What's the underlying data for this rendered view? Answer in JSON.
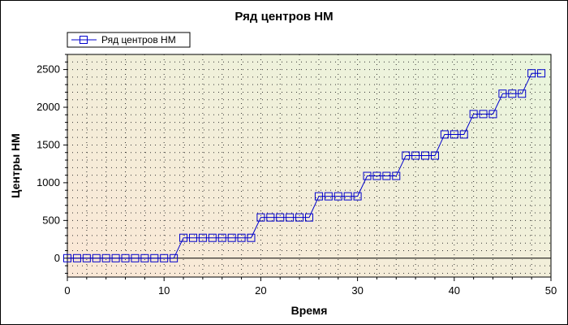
{
  "chart_data": {
    "type": "line",
    "title": "Ряд центров НМ",
    "xlabel": "Время",
    "ylabel": "Центры НМ",
    "xlim": [
      0,
      50
    ],
    "ylim": [
      -250,
      2700
    ],
    "xticks": [
      0,
      10,
      20,
      30,
      40,
      50
    ],
    "yticks": [
      0,
      500,
      1000,
      1500,
      2000,
      2500
    ],
    "grid": true,
    "legend_position": "top-left",
    "colors": {
      "series": "#0000cc",
      "zero_line": "#000000",
      "grid_dots": "#333333",
      "bg_left": "#fbe7d6",
      "bg_right": "#e9f6dd"
    },
    "series": [
      {
        "name": "Ряд центров НМ",
        "marker": "square",
        "x": [
          0,
          1,
          2,
          3,
          4,
          5,
          6,
          7,
          8,
          9,
          10,
          11,
          12,
          13,
          14,
          15,
          16,
          17,
          18,
          19,
          20,
          21,
          22,
          23,
          24,
          25,
          26,
          27,
          28,
          29,
          30,
          31,
          32,
          33,
          34,
          35,
          36,
          37,
          38,
          39,
          40,
          41,
          42,
          43,
          44,
          45,
          46,
          47,
          48,
          49
        ],
        "y": [
          0,
          0,
          0,
          0,
          0,
          0,
          0,
          0,
          0,
          0,
          0,
          0,
          270,
          270,
          270,
          270,
          270,
          270,
          270,
          270,
          540,
          540,
          540,
          540,
          540,
          540,
          820,
          820,
          820,
          820,
          820,
          1090,
          1090,
          1090,
          1090,
          1360,
          1360,
          1360,
          1360,
          1640,
          1640,
          1640,
          1910,
          1910,
          1910,
          2180,
          2180,
          2180,
          2450,
          2450
        ]
      }
    ]
  }
}
